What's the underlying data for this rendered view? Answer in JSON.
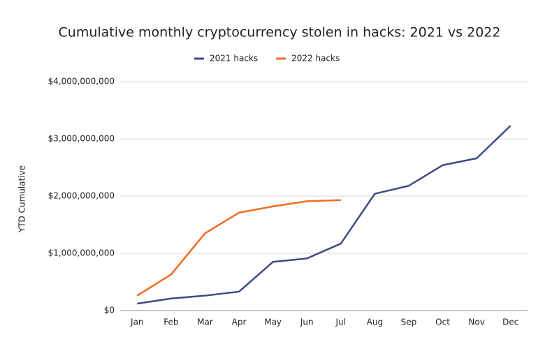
{
  "chart_data": {
    "type": "line",
    "title": "Cumulative monthly cryptocurrency stolen in hacks: 2021 vs 2022",
    "y_label": "YTD Cumulative",
    "categories": [
      "Jan",
      "Feb",
      "Mar",
      "Apr",
      "May",
      "Jun",
      "Jul",
      "Aug",
      "Sep",
      "Oct",
      "Nov",
      "Dec"
    ],
    "series": [
      {
        "name": "2021 hacks",
        "color": "#3d4b85",
        "values": [
          120000000,
          210000000,
          260000000,
          330000000,
          850000000,
          910000000,
          1170000000,
          2040000000,
          2180000000,
          2540000000,
          2660000000,
          3230000000
        ]
      },
      {
        "name": "2022 hacks",
        "color": "#f26b21",
        "values": [
          260000000,
          630000000,
          1350000000,
          1710000000,
          1820000000,
          1910000000,
          1930000000,
          null,
          null,
          null,
          null,
          null
        ]
      }
    ],
    "ylim": [
      0,
      4000000000
    ],
    "yticks": [
      {
        "value": 0,
        "label": "$0"
      },
      {
        "value": 1000000000,
        "label": "$1,000,000,000"
      },
      {
        "value": 2000000000,
        "label": "$2,000,000,000"
      },
      {
        "value": 3000000000,
        "label": "$3,000,000,000"
      },
      {
        "value": 4000000000,
        "label": "$4,000,000,000"
      }
    ],
    "grid": true,
    "legend": "top"
  }
}
